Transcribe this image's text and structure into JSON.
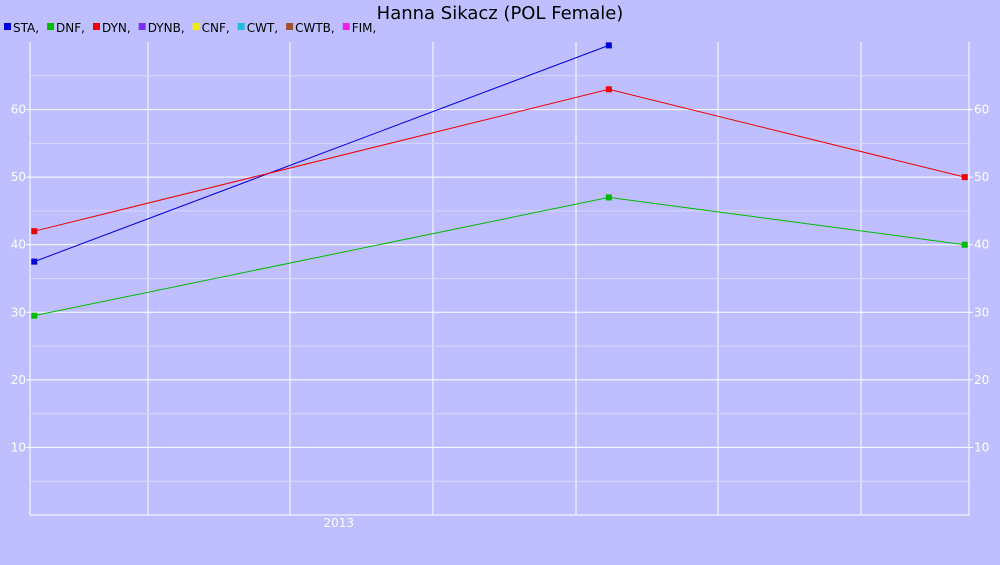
{
  "chart_data": {
    "type": "line",
    "title": "Hanna Sikacz (POL Female)",
    "legend": [
      {
        "name": "STA",
        "label": "STA,",
        "color": "#0000dd"
      },
      {
        "name": "DNF",
        "label": "DNF,",
        "color": "#00bb00"
      },
      {
        "name": "DYN",
        "label": "DYN,",
        "color": "#ee0000"
      },
      {
        "name": "DYNB",
        "label": "DYNB,",
        "color": "#7b2ff7"
      },
      {
        "name": "CNF",
        "label": "CNF,",
        "color": "#eeee00"
      },
      {
        "name": "CWT",
        "label": "CWT,",
        "color": "#22bbdd"
      },
      {
        "name": "CWTB",
        "label": "CWTB,",
        "color": "#a0522d"
      },
      {
        "name": "FIM",
        "label": "FIM,",
        "color": "#ee22ee"
      }
    ],
    "x_tick_labels": [
      {
        "x": 2013.0,
        "label": "2013"
      }
    ],
    "xlim": [
      2012.28,
      2014.47
    ],
    "ylim": [
      0,
      70
    ],
    "y_ticks": [
      10,
      20,
      30,
      40,
      50,
      60
    ],
    "y_minor_ticks": [
      5,
      15,
      25,
      35,
      45,
      55,
      65
    ],
    "grid": true,
    "legend_placement": "top-left",
    "series": [
      {
        "name": "STA",
        "color": "#0000dd",
        "x": [
          2012.29,
          2013.63
        ],
        "y": [
          37.5,
          69.5
        ]
      },
      {
        "name": "DNF",
        "color": "#00bb00",
        "x": [
          2012.29,
          2013.63,
          2014.46
        ],
        "y": [
          29.5,
          47.0,
          40.0
        ]
      },
      {
        "name": "DYN",
        "color": "#ee0000",
        "x": [
          2012.29,
          2013.63,
          2014.46
        ],
        "y": [
          42.0,
          63.0,
          50.0
        ]
      }
    ]
  }
}
